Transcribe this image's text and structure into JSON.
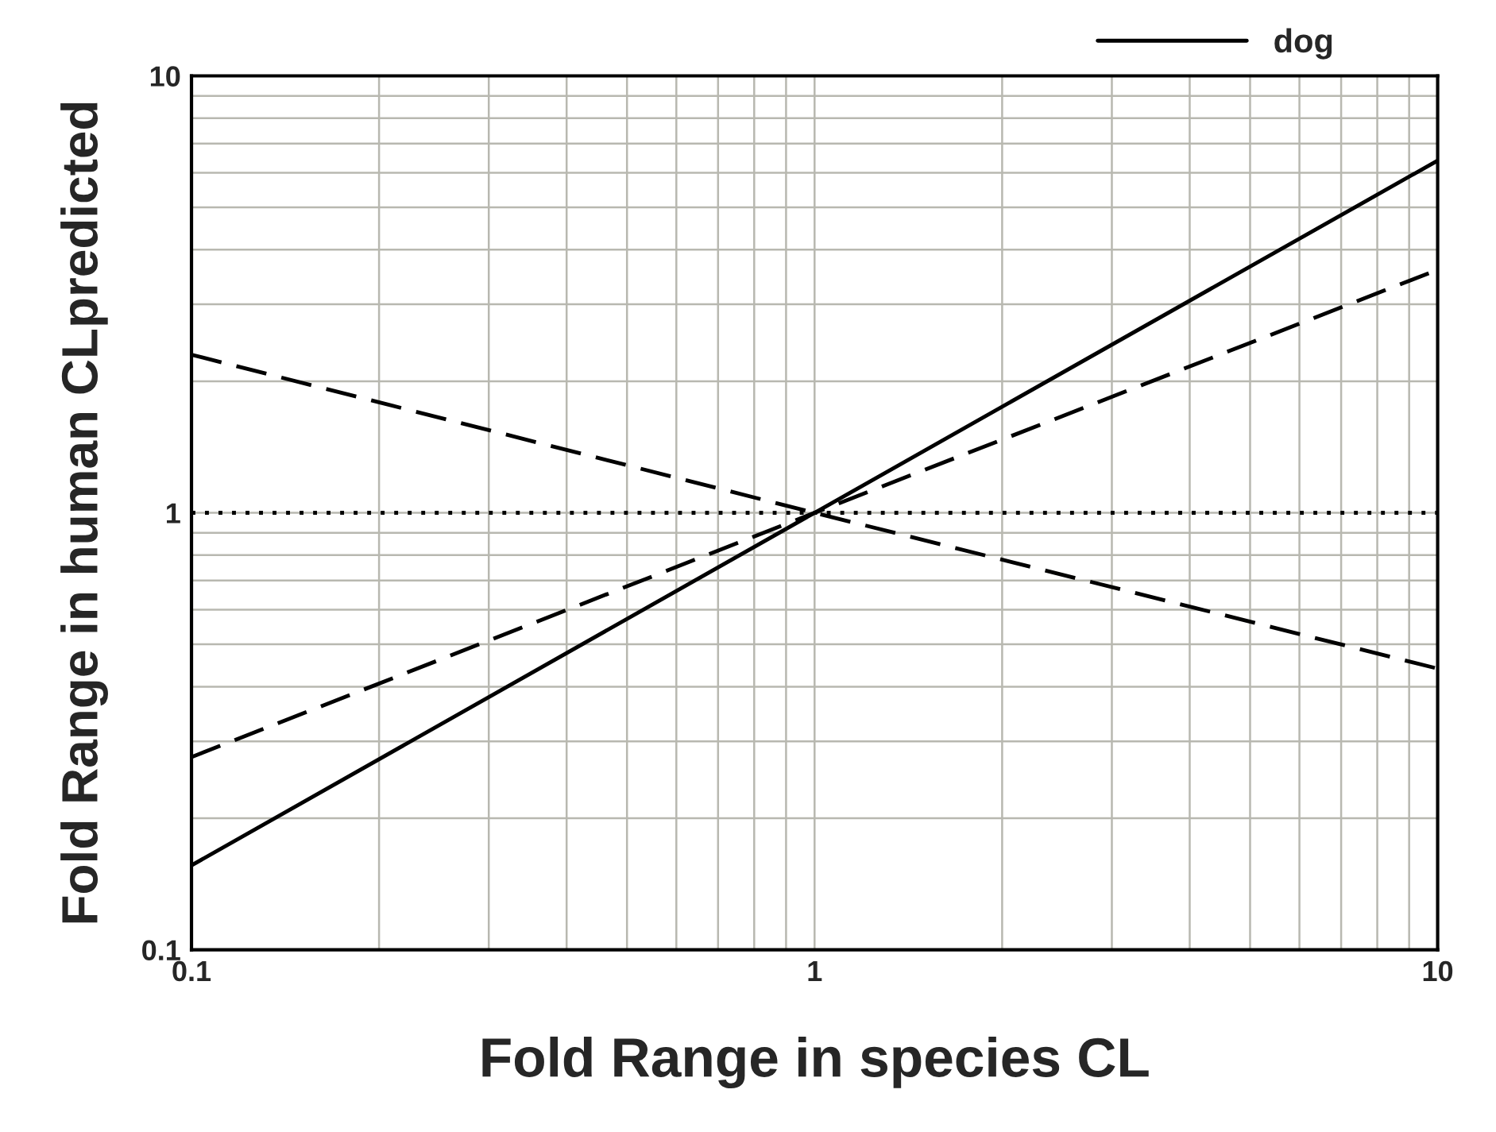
{
  "chart_data": {
    "type": "line",
    "xlabel": "Fold Range in species CL",
    "ylabel": "Fold Range in human CLpredicted",
    "log": "xy",
    "xlim": [
      0.1,
      10
    ],
    "ylim": [
      0.1,
      10
    ],
    "xticks": [
      0.1,
      1,
      10
    ],
    "yticks": [
      0.1,
      1,
      10
    ],
    "grid": true,
    "legend": "top right",
    "marker": "none",
    "series": [
      {
        "name": "dog",
        "color": "#000000",
        "line_style": "solid",
        "x": [
          0.1,
          1,
          10
        ],
        "values": [
          0.156,
          1,
          6.4
        ]
      },
      {
        "color": "#000000",
        "line_style": "dashed",
        "x": [
          0.1,
          1,
          10
        ],
        "values": [
          0.276,
          1,
          3.6
        ]
      },
      {
        "color": "#000000",
        "line_style": "dashed",
        "x": [
          0.1,
          1,
          10
        ],
        "values": [
          2.3,
          1,
          0.44
        ]
      },
      {
        "color": "#000000",
        "line_style": "dotted",
        "x": [
          0.1,
          1,
          10
        ],
        "values": [
          1,
          1,
          1
        ]
      }
    ]
  }
}
